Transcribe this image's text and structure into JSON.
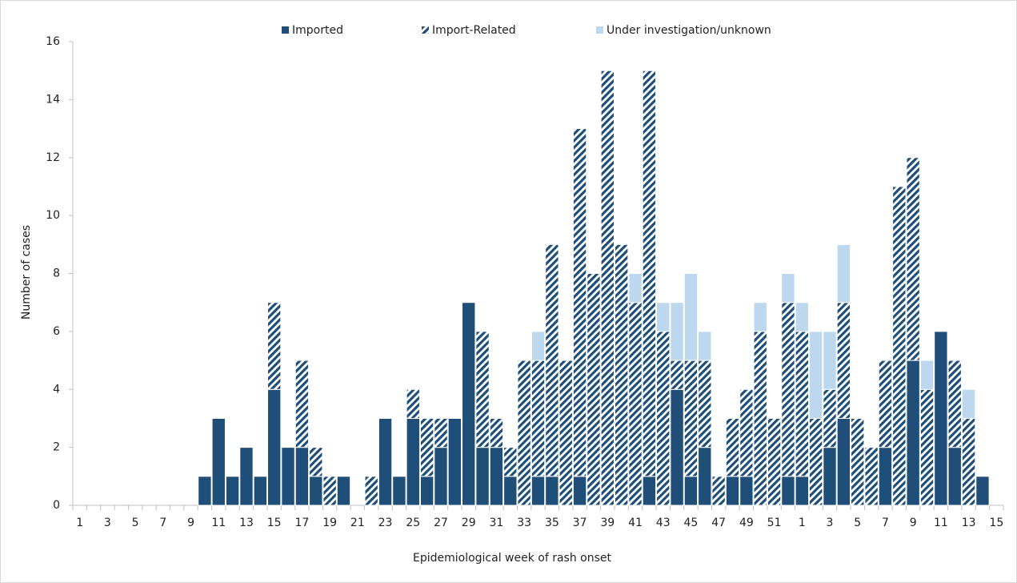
{
  "chart_data": {
    "type": "stacked-bar",
    "x_label": "Epidemiological week of rash onset",
    "y_label": "Number of cases",
    "categories": [
      1,
      null,
      3,
      null,
      5,
      null,
      7,
      null,
      9,
      null,
      11,
      null,
      13,
      null,
      15,
      null,
      17,
      null,
      19,
      null,
      21,
      null,
      23,
      null,
      25,
      null,
      27,
      null,
      29,
      null,
      31,
      null,
      33,
      null,
      35,
      null,
      37,
      null,
      39,
      null,
      41,
      null,
      43,
      null,
      45,
      null,
      47,
      null,
      49,
      null,
      51,
      null,
      1,
      null,
      3,
      null,
      5,
      null,
      7,
      null,
      9,
      null,
      11,
      null,
      13,
      null,
      15
    ],
    "series": [
      {
        "name": "Imported",
        "color": "#1f4e79",
        "pattern": "solid",
        "values": [
          0,
          0,
          0,
          0,
          0,
          0,
          0,
          0,
          0,
          1,
          3,
          1,
          2,
          1,
          4,
          2,
          2,
          1,
          0,
          1,
          0,
          0,
          3,
          1,
          3,
          1,
          2,
          3,
          7,
          2,
          2,
          1,
          0,
          1,
          1,
          0,
          1,
          0,
          0,
          0,
          0,
          1,
          0,
          4,
          1,
          2,
          0,
          1,
          1,
          0,
          0,
          1,
          1,
          0,
          2,
          3,
          0,
          0,
          2,
          0,
          5,
          0,
          6,
          2,
          0,
          1,
          0
        ]
      },
      {
        "name": "Import-Related",
        "color": "#1f4e79",
        "pattern": "hatch",
        "values": [
          0,
          0,
          0,
          0,
          0,
          0,
          0,
          0,
          0,
          0,
          0,
          0,
          0,
          0,
          3,
          0,
          3,
          1,
          1,
          0,
          0,
          1,
          0,
          0,
          1,
          2,
          1,
          0,
          0,
          4,
          1,
          1,
          5,
          4,
          8,
          5,
          12,
          8,
          15,
          9,
          7,
          14,
          6,
          1,
          4,
          3,
          1,
          2,
          3,
          6,
          3,
          6,
          5,
          3,
          2,
          4,
          3,
          2,
          3,
          11,
          7,
          4,
          0,
          3,
          3,
          0,
          0
        ]
      },
      {
        "name": "Under investigation/unknown",
        "color": "#bdd7ee",
        "pattern": "solid",
        "values": [
          0,
          0,
          0,
          0,
          0,
          0,
          0,
          0,
          0,
          0,
          0,
          0,
          0,
          0,
          0,
          0,
          0,
          0,
          0,
          0,
          0,
          0,
          0,
          0,
          0,
          0,
          0,
          0,
          0,
          0,
          0,
          0,
          0,
          1,
          0,
          0,
          0,
          0,
          0,
          0,
          1,
          0,
          1,
          2,
          3,
          1,
          0,
          0,
          0,
          1,
          0,
          1,
          1,
          3,
          2,
          2,
          0,
          0,
          0,
          0,
          0,
          1,
          0,
          0,
          1,
          0,
          0
        ]
      }
    ],
    "ylim": [
      0,
      16
    ],
    "yticks": [
      0,
      2,
      4,
      6,
      8,
      10,
      12,
      14,
      16
    ],
    "grid": false,
    "legend": "top"
  }
}
